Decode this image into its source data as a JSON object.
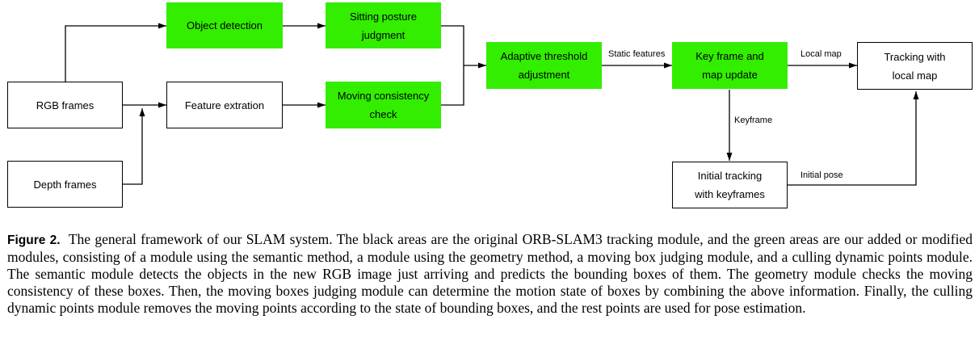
{
  "diagram": {
    "nodes": {
      "rgb_frames": "RGB frames",
      "depth_frames": "Depth frames",
      "feature_extraction": "Feature extration",
      "object_detection": "Object detection",
      "sitting_posture": "Sitting posture judgment",
      "moving_consistency": "Moving consistency check",
      "adaptive_threshold": "Adaptive threshold adjustment",
      "keyframe_map_update": "Key frame and map update",
      "tracking_local_map": "Tracking with local map",
      "initial_tracking": "Initial tracking with keyframes"
    },
    "edge_labels": {
      "static_features": "Static features",
      "local_map": "Local map",
      "keyframe": "Keyframe",
      "initial_pose": "Initial pose"
    },
    "colors": {
      "original_module": "#ffffff",
      "added_module": "#33ee00",
      "line": "#000000"
    }
  },
  "caption": {
    "label": "Figure 2.",
    "text": "The general framework of our SLAM system. The black areas are the original ORB-SLAM3 tracking module, and the green areas are our added or modified modules, consisting of a module using the semantic method, a module using the geometry method, a moving box judging module, and a culling dynamic points module. The semantic module detects the objects in the new RGB image just arriving and predicts the bounding boxes of them. The geometry module checks the moving consistency of these boxes. Then, the moving boxes judging module can determine the motion state of boxes by combining the above information. Finally, the culling dynamic points module removes the moving points according to the state of bounding boxes, and the rest points are used for pose estimation."
  }
}
